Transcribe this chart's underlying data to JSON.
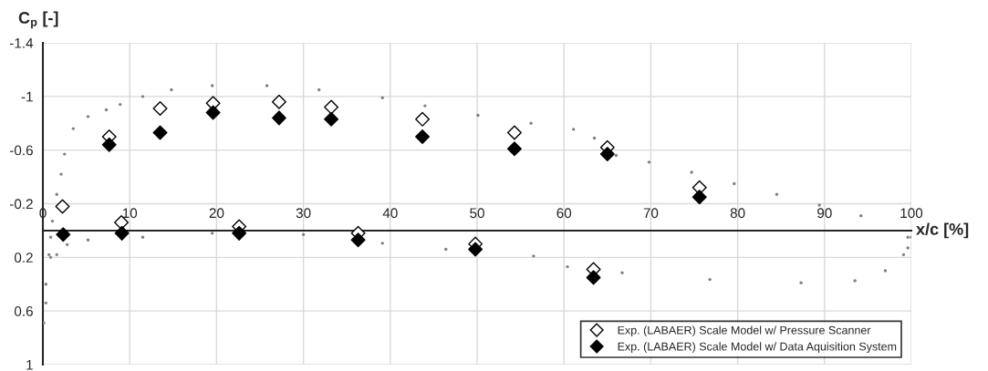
{
  "chart_data": {
    "type": "scatter",
    "xlabel": "x/c [%]",
    "ylabel": "C$_{p}$ [-]",
    "xlim": [
      0,
      100
    ],
    "xticks": [
      0,
      10,
      20,
      30,
      40,
      50,
      60,
      70,
      80,
      90,
      100
    ],
    "ylim": [
      1,
      -1.4
    ],
    "yticks": [
      -1.4,
      -1,
      -0.6,
      -0.2,
      0.2,
      0.6,
      1
    ],
    "grid": true,
    "legend": "bottom right",
    "series": [
      {
        "marker": "circle",
        "color": "#808080",
        "x": [
          100,
          99.6,
          99.1,
          97,
          93.5,
          87.3,
          76.8,
          66.7,
          60.4,
          56.5,
          46.4,
          39.1,
          30,
          19.5,
          11.5,
          5.2,
          2.8,
          1.6,
          0.9,
          0.35,
          0.1,
          0.35,
          0.7,
          0.9,
          1.1,
          1.6,
          2.1,
          2.5,
          3.5,
          5.2,
          7.3,
          8.9,
          11.5,
          14.8,
          19.5,
          25.8,
          31.8,
          39.1,
          44.0,
          50.1,
          56.2,
          61.1,
          63.5,
          66.0,
          69.8,
          74.7,
          79.6,
          84.5,
          89.4,
          94.2,
          99.6
        ],
        "values": [
          0.05,
          0.13,
          0.18,
          0.3,
          0.375,
          0.39,
          0.365,
          0.315,
          0.27,
          0.19,
          0.14,
          0.095,
          0.03,
          0.02,
          0.05,
          0.07,
          0.105,
          0.18,
          0.2,
          0.4,
          0.69,
          0.54,
          0.18,
          0.05,
          -0.07,
          -0.27,
          -0.42,
          -0.57,
          -0.76,
          -0.85,
          -0.9,
          -0.94,
          -1.0,
          -1.05,
          -1.08,
          -1.08,
          -1.05,
          -0.99,
          -0.93,
          -0.86,
          -0.8,
          -0.755,
          -0.69,
          -0.56,
          -0.51,
          -0.435,
          -0.35,
          -0.27,
          -0.19,
          -0.11,
          0.05
        ]
      },
      {
        "marker": "diamond",
        "name": "Exp. (LABAER) Scale Model w/ Pressure Scanner",
        "color": "#ffffff",
        "x": [
          2.26,
          7.64,
          9.04,
          13.5,
          19.6,
          22.6,
          27.2,
          33.2,
          36.3,
          43.7,
          49.8,
          54.3,
          63.4,
          65.0,
          75.6
        ],
        "values": [
          -0.18,
          -0.7,
          -0.06,
          -0.91,
          -0.95,
          -0.03,
          -0.96,
          -0.92,
          0.02,
          -0.83,
          0.1,
          -0.73,
          0.29,
          -0.62,
          -0.32
        ]
      },
      {
        "marker": "diamond",
        "name": "Exp. (LABAER) Scale Model w/ Data Aquisition System",
        "color": "#000000",
        "x": [
          2.34,
          7.64,
          9.1,
          13.5,
          19.6,
          22.6,
          27.2,
          33.2,
          36.3,
          43.7,
          49.8,
          54.3,
          63.4,
          65.0,
          75.6
        ],
        "values": [
          0.03,
          -0.64,
          0.02,
          -0.73,
          -0.88,
          0.02,
          -0.84,
          -0.83,
          0.07,
          -0.7,
          0.14,
          -0.61,
          0.35,
          -0.57,
          -0.25
        ]
      }
    ]
  }
}
